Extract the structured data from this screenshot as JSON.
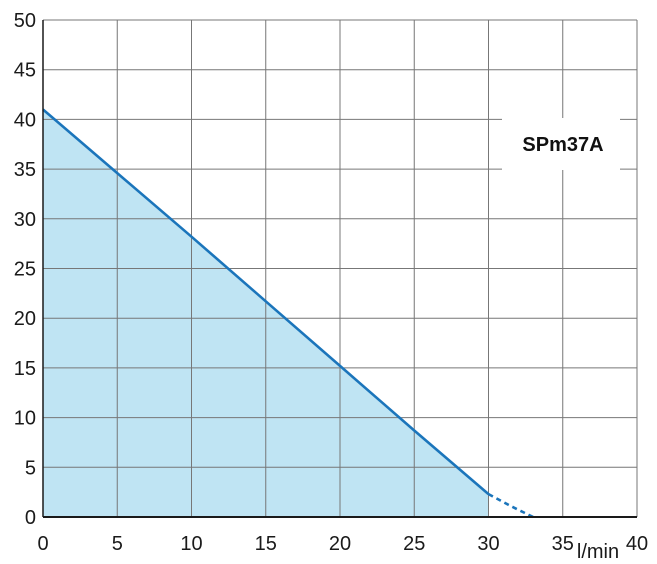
{
  "chart_data": {
    "type": "area",
    "title": "",
    "xlabel": "l/min",
    "ylabel": "",
    "badge": "SPm37A",
    "xlim": [
      0,
      40
    ],
    "ylim": [
      0,
      50
    ],
    "x_ticks": [
      "0",
      "5",
      "10",
      "15",
      "20",
      "25",
      "30",
      "35",
      "40"
    ],
    "y_ticks": [
      "0",
      "5",
      "10",
      "15",
      "20",
      "25",
      "30",
      "35",
      "40",
      "45",
      "50"
    ],
    "grid": true,
    "series": [
      {
        "x": [
          0,
          5,
          10,
          15,
          20,
          25,
          30
        ],
        "y": [
          41,
          34.6,
          28.2,
          21.7,
          15.2,
          8.7,
          2.3
        ],
        "style": "solid",
        "filled": true
      },
      {
        "x": [
          30,
          31.5,
          33
        ],
        "y": [
          2.3,
          1.1,
          0
        ],
        "style": "dashed",
        "filled": false
      }
    ],
    "colors": {
      "line": "#1b75bb",
      "fill": "#bfe4f3",
      "grid": "#777777",
      "axis": "#1a1a1a"
    }
  }
}
